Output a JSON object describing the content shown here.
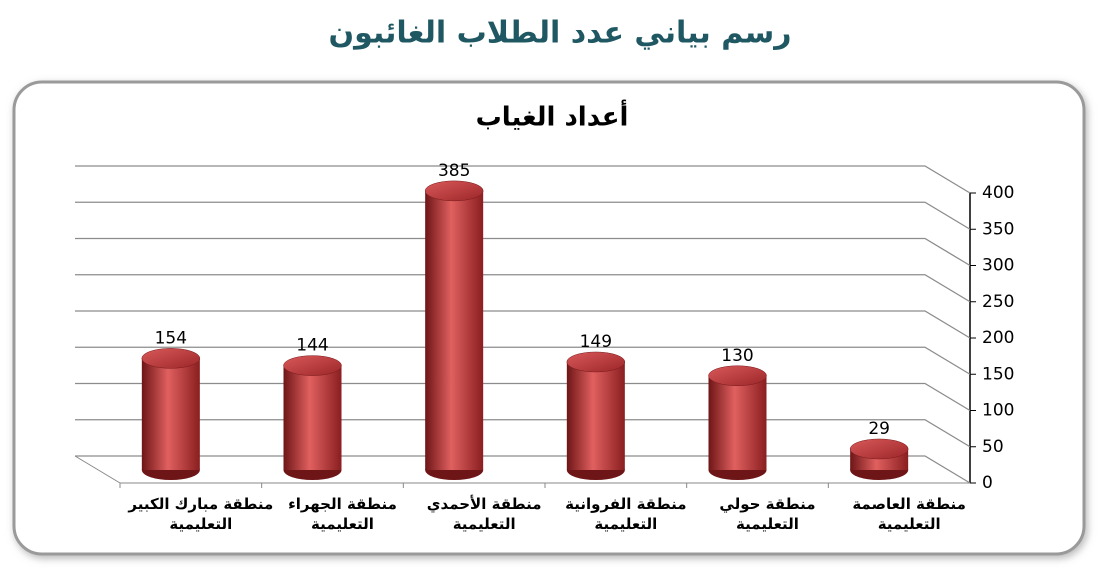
{
  "page_title": "رسم بياني عدد الطلاب الغائبون",
  "chart_data": {
    "type": "bar3d",
    "title": "أعداد الغياب",
    "categories": [
      "منطقة مبارك الكبير التعليمية",
      "منطقة الجهراء التعليمية",
      "منطقة الأحمدي التعليمية",
      "منطقة الفروانية التعليمية",
      "منطقة حولي التعليمية",
      "منطقة العاصمة التعليمية"
    ],
    "values": [
      154,
      144,
      385,
      149,
      130,
      29
    ],
    "color": "#c0393b",
    "ylim": [
      0,
      400
    ],
    "yticks": [
      0,
      50,
      100,
      150,
      200,
      250,
      300,
      350,
      400
    ],
    "grid": true
  }
}
